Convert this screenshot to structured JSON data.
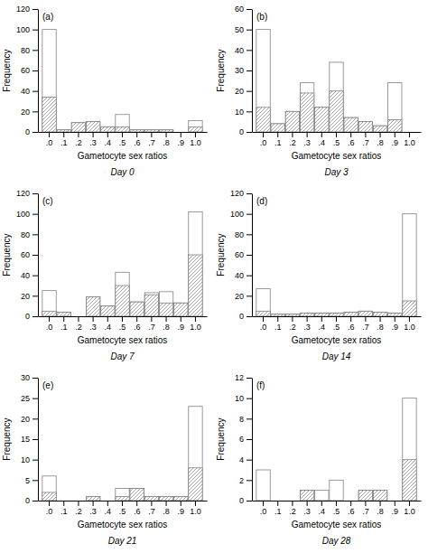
{
  "chart_data": [
    {
      "type": "bar",
      "categories": [
        ".0",
        ".1",
        ".2",
        ".3",
        ".4",
        ".5",
        ".6",
        ".7",
        ".8",
        ".9",
        "1.0"
      ],
      "series": [
        {
          "values": [
            100,
            2,
            9,
            10,
            5,
            17,
            2,
            2,
            2,
            0,
            11
          ]
        },
        {
          "values": [
            34,
            2,
            9,
            10,
            5,
            5,
            2,
            2,
            2,
            0,
            5
          ]
        }
      ],
      "color": "#808080",
      "ylim": [
        0,
        120
      ],
      "yticks": [
        0,
        20,
        40,
        60,
        80,
        100,
        120
      ],
      "grid": false,
      "xlabel": "Gametocyte sex ratios",
      "ylabel": "Frequency",
      "annotations": [
        "(a)",
        "Day 0"
      ]
    },
    {
      "type": "bar",
      "categories": [
        ".0",
        ".1",
        ".2",
        ".3",
        ".4",
        ".5",
        ".6",
        ".7",
        ".8",
        ".9",
        "1.0"
      ],
      "series": [
        {
          "values": [
            50,
            4,
            10,
            24,
            12,
            34,
            7,
            5,
            3,
            24,
            0
          ]
        },
        {
          "values": [
            12,
            4,
            10,
            19,
            12,
            20,
            7,
            5,
            3,
            6,
            0
          ]
        }
      ],
      "color": "#808080",
      "ylim": [
        0,
        60
      ],
      "yticks": [
        0,
        10,
        20,
        30,
        40,
        50,
        60
      ],
      "grid": false,
      "xlabel": "Gametocyte sex ratios",
      "ylabel": "Frequency",
      "annotations": [
        "(b)",
        "Day 3"
      ]
    },
    {
      "type": "bar",
      "categories": [
        ".0",
        ".1",
        ".2",
        ".3",
        ".4",
        ".5",
        ".6",
        ".7",
        ".8",
        ".9",
        "1.0"
      ],
      "series": [
        {
          "values": [
            25,
            4,
            0,
            19,
            10,
            43,
            14,
            23,
            24,
            13,
            102
          ]
        },
        {
          "values": [
            5,
            4,
            0,
            19,
            10,
            30,
            14,
            21,
            13,
            13,
            60
          ]
        }
      ],
      "color": "#808080",
      "ylim": [
        0,
        120
      ],
      "yticks": [
        0,
        20,
        40,
        60,
        80,
        100,
        120
      ],
      "grid": false,
      "xlabel": "Gametocyte sex ratios",
      "ylabel": "Frequency",
      "annotations": [
        "(c)",
        "Day 7"
      ]
    },
    {
      "type": "bar",
      "categories": [
        ".0",
        ".1",
        ".2",
        ".3",
        ".4",
        ".5",
        ".6",
        ".7",
        ".8",
        ".9",
        "1.0"
      ],
      "series": [
        {
          "values": [
            27,
            2,
            2,
            3,
            3,
            3,
            4,
            5,
            4,
            3,
            100
          ]
        },
        {
          "values": [
            5,
            2,
            2,
            3,
            3,
            3,
            4,
            5,
            4,
            3,
            15
          ]
        }
      ],
      "color": "#808080",
      "ylim": [
        0,
        120
      ],
      "yticks": [
        0,
        20,
        40,
        60,
        80,
        100,
        120
      ],
      "grid": false,
      "xlabel": "Gametocyte sex ratios",
      "ylabel": "Frequency",
      "annotations": [
        "(d)",
        "Day 14"
      ]
    },
    {
      "type": "bar",
      "categories": [
        ".0",
        ".1",
        ".2",
        ".3",
        ".4",
        ".5",
        ".6",
        ".7",
        ".8",
        ".9",
        "1.0"
      ],
      "series": [
        {
          "values": [
            6,
            0,
            0,
            1,
            0,
            3,
            3,
            1,
            1,
            1,
            23
          ]
        },
        {
          "values": [
            2,
            0,
            0,
            1,
            0,
            1,
            3,
            1,
            1,
            1,
            8
          ]
        }
      ],
      "color": "#808080",
      "ylim": [
        0,
        30
      ],
      "yticks": [
        0,
        5,
        10,
        15,
        20,
        25,
        30
      ],
      "grid": false,
      "xlabel": "Gametocyte sex ratios",
      "ylabel": "Frequency",
      "annotations": [
        "(e)",
        "Day 21"
      ]
    },
    {
      "type": "bar",
      "categories": [
        ".0",
        ".1",
        ".2",
        ".3",
        ".4",
        ".5",
        ".6",
        ".7",
        ".8",
        ".9",
        "1.0"
      ],
      "series": [
        {
          "values": [
            3,
            0,
            0,
            1,
            1,
            2,
            0,
            1,
            1,
            0,
            10
          ]
        },
        {
          "values": [
            0,
            0,
            0,
            1,
            0,
            0,
            0,
            1,
            1,
            0,
            4
          ]
        }
      ],
      "color": "#808080",
      "ylim": [
        0,
        12
      ],
      "yticks": [
        0,
        2,
        4,
        6,
        8,
        10,
        12
      ],
      "grid": false,
      "xlabel": "Gametocyte sex ratios",
      "ylabel": "Frequency",
      "annotations": [
        "(f)",
        "Day 28"
      ]
    }
  ]
}
